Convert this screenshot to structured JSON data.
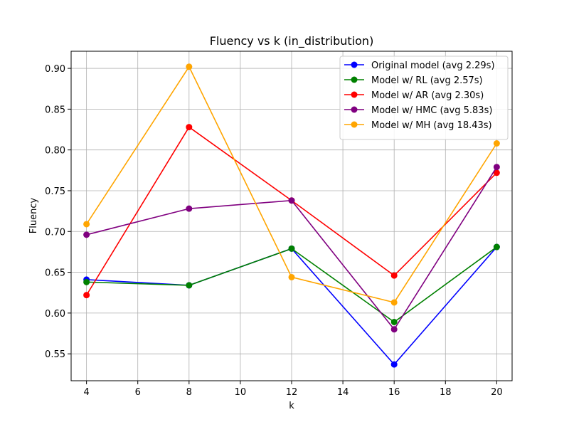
{
  "chart_data": {
    "type": "line",
    "title": "Fluency vs k (in_distribution)",
    "xlabel": "k",
    "ylabel": "Fluency",
    "xlim": [
      3.4,
      20.6
    ],
    "ylim": [
      0.517,
      0.921
    ],
    "xticks": [
      4,
      6,
      8,
      10,
      12,
      14,
      16,
      18,
      20
    ],
    "yticks": [
      0.55,
      0.6,
      0.65,
      0.7,
      0.75,
      0.8,
      0.85,
      0.9
    ],
    "grid": true,
    "legend_position": "top-right",
    "x": [
      4,
      8,
      12,
      16,
      20
    ],
    "series": [
      {
        "name": "Original model (avg 2.29s)",
        "color": "#0000ff",
        "values": [
          0.641,
          0.634,
          0.679,
          0.537,
          0.681
        ]
      },
      {
        "name": "Model w/ RL (avg 2.57s)",
        "color": "#008000",
        "values": [
          0.638,
          0.634,
          0.679,
          0.589,
          0.681
        ]
      },
      {
        "name": "Model w/ AR (avg 2.30s)",
        "color": "#ff0000",
        "values": [
          0.622,
          0.828,
          0.738,
          0.646,
          0.772
        ]
      },
      {
        "name": "Model w/ HMC (avg 5.83s)",
        "color": "#800080",
        "values": [
          0.696,
          0.728,
          0.738,
          0.58,
          0.779
        ]
      },
      {
        "name": "Model w/ MH (avg 18.43s)",
        "color": "#ffa500",
        "values": [
          0.709,
          0.902,
          0.644,
          0.613,
          0.808
        ]
      }
    ]
  }
}
